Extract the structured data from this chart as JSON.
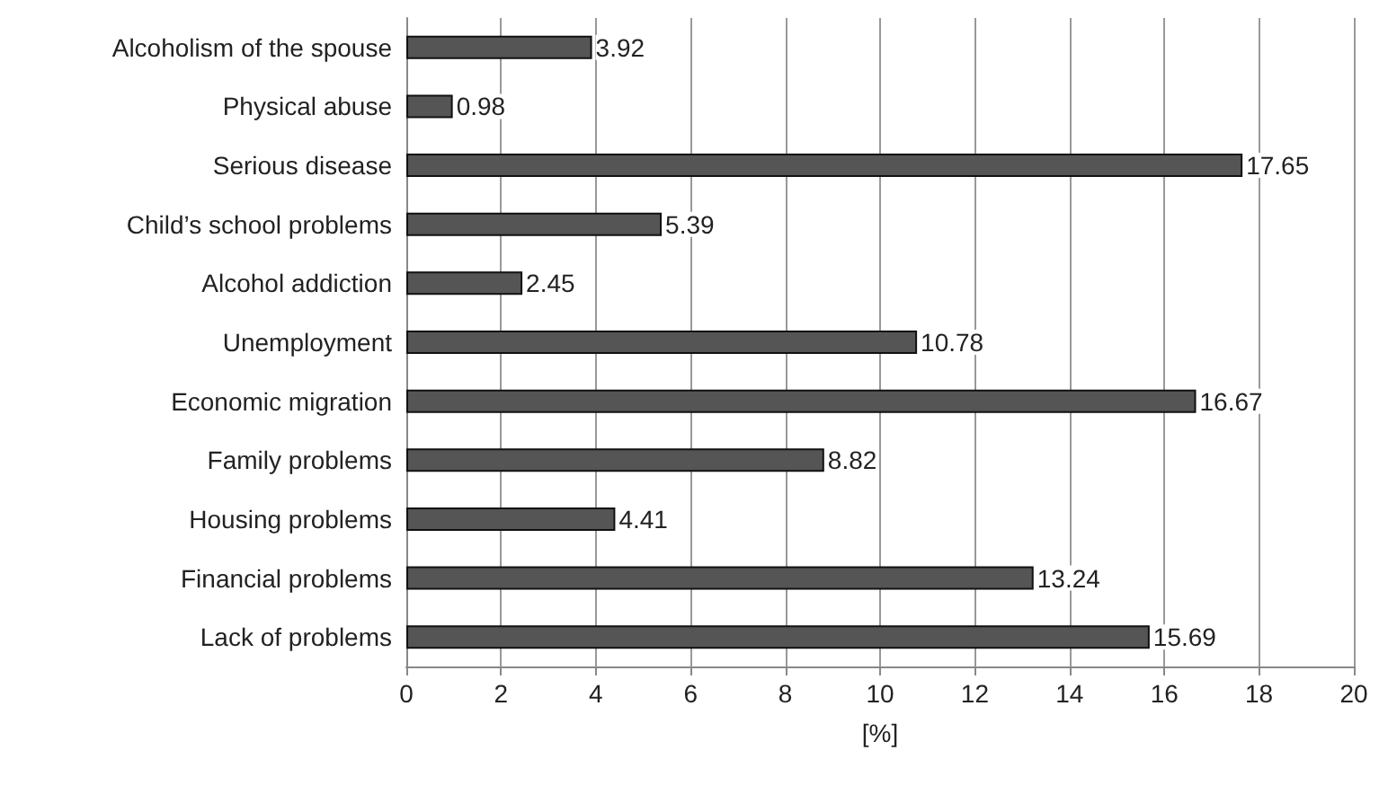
{
  "chart_data": {
    "type": "bar",
    "orientation": "horizontal",
    "xlabel": "[%]",
    "categories": [
      "Alcoholism of the spouse",
      "Physical abuse",
      "Serious disease",
      "Child’s school problems",
      "Alcohol addiction",
      "Unemployment",
      "Economic migration",
      "Family problems",
      "Housing problems",
      "Financial problems",
      "Lack of problems"
    ],
    "values": [
      3.92,
      0.98,
      17.65,
      5.39,
      2.45,
      10.78,
      16.67,
      8.82,
      4.41,
      13.24,
      15.69
    ],
    "color": "#555555",
    "xlim": [
      0,
      20
    ],
    "xticks": [
      0,
      2,
      4,
      6,
      8,
      10,
      12,
      14,
      16,
      18,
      20
    ],
    "grid": "x",
    "data_labels": true
  }
}
